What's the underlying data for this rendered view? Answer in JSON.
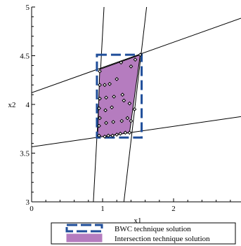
{
  "chart_data": {
    "type": "scatter",
    "title": "",
    "xlabel": "x1",
    "ylabel": "x2",
    "xlim": [
      0,
      2.95
    ],
    "ylim": [
      3,
      5
    ],
    "x_ticks": [
      {
        "value": 0,
        "label": "0"
      },
      {
        "value": 1,
        "label": "1"
      },
      {
        "value": 2,
        "label": "2"
      }
    ],
    "y_ticks": [
      {
        "value": 3,
        "label": "3"
      },
      {
        "value": 3.5,
        "label": "3.5"
      },
      {
        "value": 4,
        "label": "4"
      },
      {
        "value": 4.5,
        "label": "4.5"
      },
      {
        "value": 5,
        "label": "5"
      }
    ],
    "grid": false,
    "legend_position": "bottom",
    "lines": [
      {
        "points": [
          [
            0,
            3.565
          ],
          [
            2.95,
            3.875
          ]
        ]
      },
      {
        "points": [
          [
            0,
            4.12
          ],
          [
            2.95,
            4.885
          ]
        ]
      },
      {
        "points": [
          [
            0.87,
            3
          ],
          [
            1.02,
            5
          ]
        ]
      },
      {
        "points": [
          [
            1.3,
            3
          ],
          [
            1.62,
            5
          ]
        ]
      }
    ],
    "series": [
      {
        "name": "Intersection technique solution",
        "kind": "polygon",
        "color": "#b57cbf",
        "polygon": [
          [
            0.93,
            3.663
          ],
          [
            1.38,
            3.71
          ],
          [
            1.53,
            4.51
          ],
          [
            0.96,
            4.36
          ]
        ]
      },
      {
        "name": "BWC technique solution",
        "kind": "box",
        "color": "#1f4e9a",
        "box": {
          "x": [
            0.92,
            1.55
          ],
          "y": [
            3.66,
            4.51
          ]
        }
      },
      {
        "name": "",
        "kind": "points",
        "color": "#000000",
        "points": [
          [
            0.95,
            3.68
          ],
          [
            1.03,
            3.67
          ],
          [
            1.08,
            3.68
          ],
          [
            1.14,
            3.68
          ],
          [
            1.2,
            3.69
          ],
          [
            1.25,
            3.7
          ],
          [
            1.32,
            3.71
          ],
          [
            1.38,
            3.71
          ],
          [
            0.95,
            3.78
          ],
          [
            0.96,
            3.86
          ],
          [
            0.95,
            3.96
          ],
          [
            0.96,
            4.06
          ],
          [
            0.96,
            4.2
          ],
          [
            0.96,
            4.34
          ],
          [
            1.05,
            3.81
          ],
          [
            1.15,
            3.82
          ],
          [
            1.27,
            3.83
          ],
          [
            1.35,
            3.86
          ],
          [
            1.4,
            3.83
          ],
          [
            1.45,
            3.95
          ],
          [
            1.04,
            3.94
          ],
          [
            1.13,
            3.97
          ],
          [
            1.3,
            4.04
          ],
          [
            1.38,
            4.01
          ],
          [
            1.05,
            4.07
          ],
          [
            1.16,
            4.08
          ],
          [
            1.28,
            4.1
          ],
          [
            1.03,
            4.2
          ],
          [
            1.1,
            4.21
          ],
          [
            1.2,
            4.26
          ],
          [
            1.4,
            4.39
          ],
          [
            1.46,
            4.46
          ],
          [
            1.53,
            4.51
          ],
          [
            1.26,
            4.43
          ]
        ]
      }
    ]
  },
  "legend": {
    "items": [
      {
        "label": "BWC technique solution",
        "swatch": "dashed-box",
        "color": "#1f4e9a"
      },
      {
        "label": "Intersection technique solution",
        "swatch": "fill",
        "color": "#b57cbf"
      }
    ]
  }
}
